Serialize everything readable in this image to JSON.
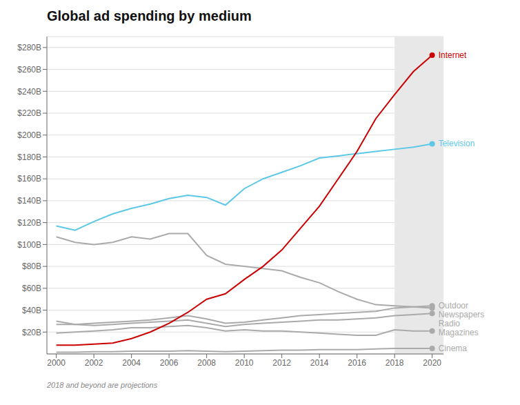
{
  "chart_data": {
    "type": "line",
    "title": "Global ad spending by medium",
    "subtitle": "2018 and beyond are projections",
    "x": [
      2000,
      2001,
      2002,
      2003,
      2004,
      2005,
      2006,
      2007,
      2008,
      2009,
      2010,
      2011,
      2012,
      2013,
      2014,
      2015,
      2016,
      2017,
      2018,
      2019,
      2020
    ],
    "xlim": [
      1999.5,
      2020.6
    ],
    "xticks": [
      2000,
      2002,
      2004,
      2006,
      2008,
      2010,
      2012,
      2014,
      2016,
      2018,
      2020
    ],
    "ylim": [
      0,
      290
    ],
    "yticks": [
      {
        "value": 20,
        "label": "$20B"
      },
      {
        "value": 40,
        "label": "$40B"
      },
      {
        "value": 60,
        "label": "$60B"
      },
      {
        "value": 80,
        "label": "$80B"
      },
      {
        "value": 100,
        "label": "$100B"
      },
      {
        "value": 120,
        "label": "$120B"
      },
      {
        "value": 140,
        "label": "$140B"
      },
      {
        "value": 160,
        "label": "$160B"
      },
      {
        "value": 180,
        "label": "$180B"
      },
      {
        "value": 200,
        "label": "$200B"
      },
      {
        "value": 220,
        "label": "$220B"
      },
      {
        "value": 240,
        "label": "$240B"
      },
      {
        "value": 260,
        "label": "$260B"
      },
      {
        "value": 280,
        "label": "$280B"
      }
    ],
    "grid": true,
    "projection": {
      "start": 2018,
      "color": "#e8e8e8"
    },
    "series": [
      {
        "name": "Newspapers",
        "color": "#aaaaaa",
        "values": [
          107,
          102,
          100,
          102,
          107,
          105,
          110,
          110,
          90,
          82,
          80,
          78,
          76,
          70,
          65,
          57,
          50,
          45,
          44,
          43,
          42
        ]
      },
      {
        "name": "Outdoor",
        "color": "#aaaaaa",
        "values": [
          27,
          27,
          28,
          29,
          30,
          31,
          33,
          35,
          32,
          28,
          29,
          31,
          33,
          35,
          36,
          37,
          38,
          39,
          42,
          43,
          44
        ]
      },
      {
        "name": "Radio",
        "color": "#aaaaaa",
        "values": [
          30,
          27,
          26,
          27,
          28,
          29,
          30,
          31,
          28,
          25,
          27,
          28,
          29,
          30,
          31,
          31,
          32,
          33,
          35,
          36,
          37
        ]
      },
      {
        "name": "Magazines",
        "color": "#aaaaaa",
        "values": [
          19,
          20,
          21,
          22,
          24,
          24,
          25,
          26,
          24,
          21,
          22,
          21,
          21,
          20,
          19,
          18,
          17,
          17,
          22,
          21,
          21
        ]
      },
      {
        "name": "Cinema",
        "color": "#aaaaaa",
        "values": [
          1.5,
          1.5,
          2,
          2,
          2.5,
          2.5,
          2.5,
          3,
          2.5,
          2,
          2.5,
          3,
          3.5,
          3.5,
          4,
          4,
          4,
          4.5,
          5,
          5,
          5
        ]
      },
      {
        "name": "Television",
        "color": "#5bc8e8",
        "values": [
          117,
          113,
          121,
          128,
          133,
          137,
          142,
          145,
          143,
          136,
          151,
          160,
          166,
          172,
          179,
          181,
          183,
          185,
          187,
          189,
          192
        ]
      },
      {
        "name": "Internet",
        "color": "#cc0000",
        "values": [
          8,
          8,
          9,
          10,
          14,
          20,
          28,
          38,
          50,
          55,
          68,
          80,
          95,
          115,
          135,
          160,
          185,
          215,
          237,
          258,
          273
        ]
      }
    ]
  }
}
